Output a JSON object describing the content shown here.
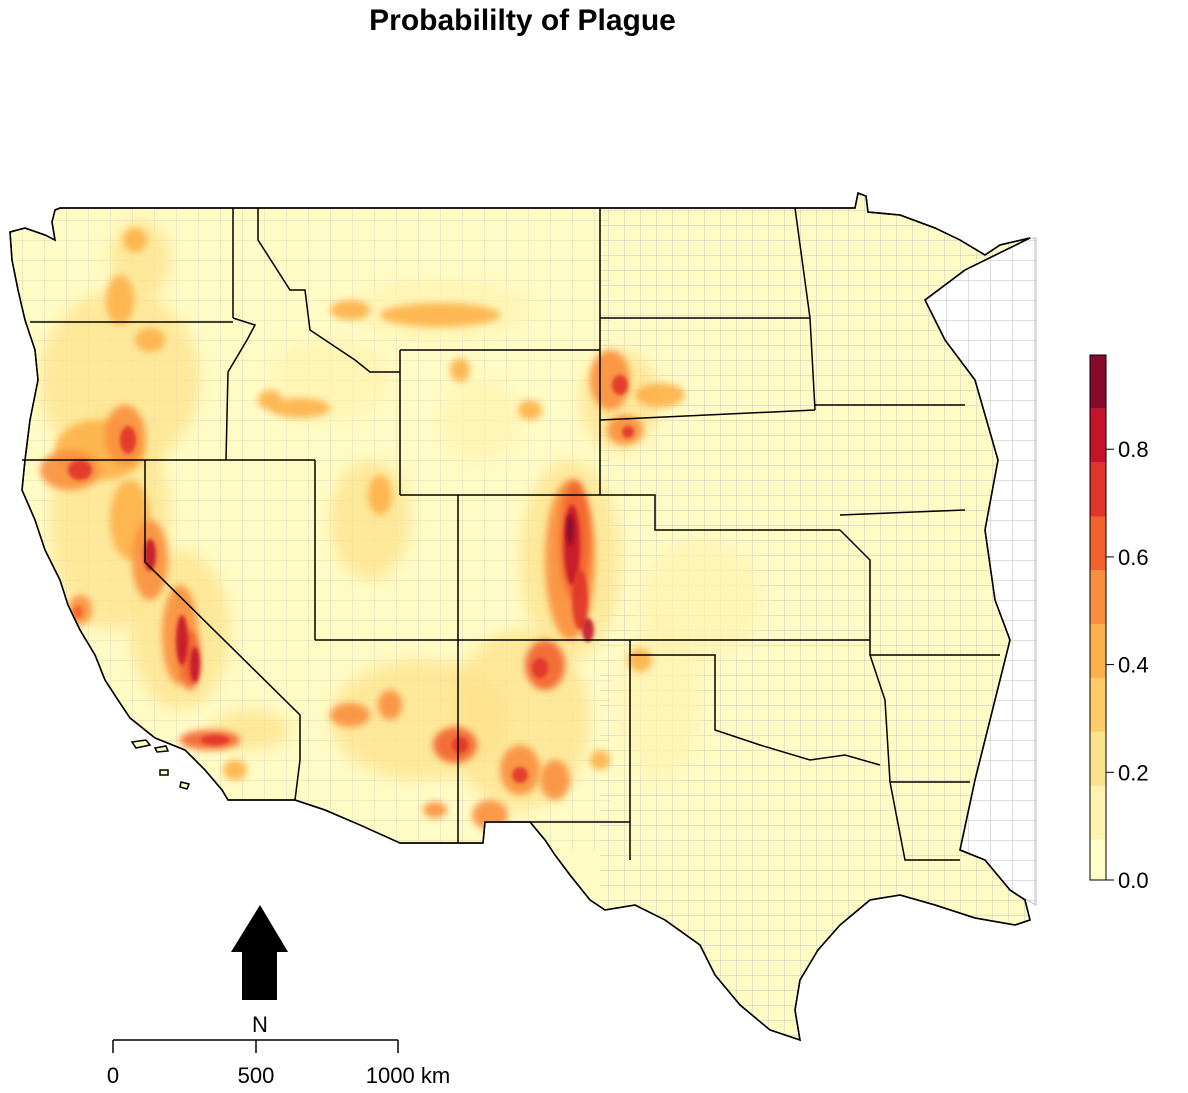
{
  "title": "Probabililty of Plague",
  "legend": {
    "min": 0.0,
    "max": 0.975,
    "bins": [
      {
        "from": 0.0,
        "to": 0.075,
        "color": "#FFFFC8"
      },
      {
        "from": 0.075,
        "to": 0.175,
        "color": "#FFF3B0"
      },
      {
        "from": 0.175,
        "to": 0.275,
        "color": "#FDE28C"
      },
      {
        "from": 0.275,
        "to": 0.375,
        "color": "#FECC67"
      },
      {
        "from": 0.375,
        "to": 0.475,
        "color": "#FDB14A"
      },
      {
        "from": 0.475,
        "to": 0.575,
        "color": "#F98F3C"
      },
      {
        "from": 0.575,
        "to": 0.675,
        "color": "#F2622F"
      },
      {
        "from": 0.675,
        "to": 0.775,
        "color": "#E1352A"
      },
      {
        "from": 0.775,
        "to": 0.875,
        "color": "#C41429"
      },
      {
        "from": 0.875,
        "to": 0.975,
        "color": "#870A2A"
      }
    ],
    "ticks": [
      {
        "value": 0.0,
        "label": "0.0"
      },
      {
        "value": 0.2,
        "label": "0.2"
      },
      {
        "value": 0.4,
        "label": "0.4"
      },
      {
        "value": 0.6,
        "label": "0.6"
      },
      {
        "value": 0.8,
        "label": "0.8"
      }
    ]
  },
  "north_arrow": {
    "label": "N"
  },
  "scale_bar": {
    "labels": [
      "0",
      "500",
      "1000 km"
    ]
  },
  "colors": {
    "land": "#FFFBC4",
    "county_lines": "#B8B8B8",
    "state_lines": "#000000",
    "outside": "#FFFFFF"
  }
}
